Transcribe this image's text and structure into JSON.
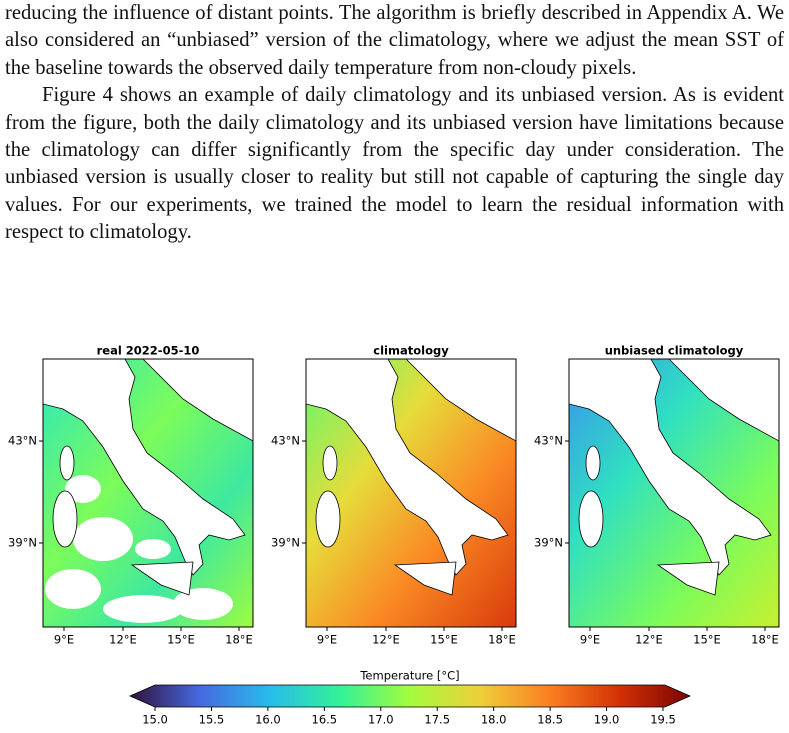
{
  "paragraphs": [
    "reducing the influence of distant points. The algorithm is briefly described in Appendix A. We also considered an “unbiased” version of the climatology, where we adjust the mean SST of the baseline towards the observed daily temperature from non-cloudy pixels.",
    "Figure 4 shows an example of daily climatology and its unbiased version. As is evident from the figure, both the daily climatology and its unbiased version have limitations because the climatology can differ significantly from the specific day under consideration. The unbiased version is usually closer to reality but still not capable of capturing the single day values. For our experiments, we trained the model to learn the residual information with respect to climatology."
  ],
  "figure": {
    "panels": [
      {
        "title": "real 2022-05-10",
        "yticks": [
          "43°N",
          "39°N"
        ],
        "xticks": [
          "9°E",
          "12°E",
          "15°E",
          "18°E"
        ]
      },
      {
        "title": "climatology",
        "yticks": [
          "43°N",
          "39°N"
        ],
        "xticks": [
          "9°E",
          "12°E",
          "15°E",
          "18°E"
        ]
      },
      {
        "title": "unbiased climatology",
        "yticks": [
          "43°N",
          "39°N"
        ],
        "xticks": [
          "9°E",
          "12°E",
          "15°E",
          "18°E"
        ]
      }
    ],
    "colorbar": {
      "label": "Temperature [°C]",
      "ticks": [
        "15.0",
        "15.5",
        "16.0",
        "16.5",
        "17.0",
        "17.5",
        "18.0",
        "18.5",
        "19.0",
        "19.5"
      ]
    }
  }
}
